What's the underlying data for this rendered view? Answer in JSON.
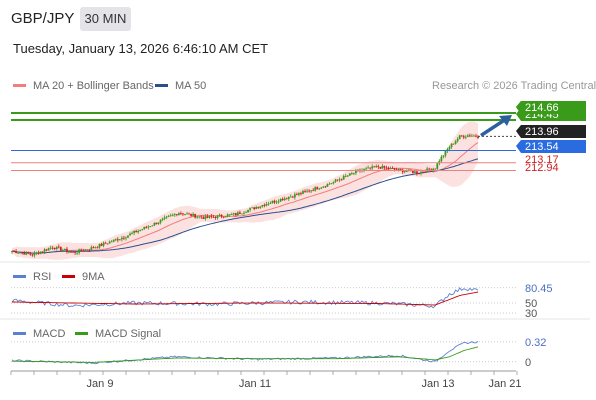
{
  "header": {
    "symbol": "GBP/JPY",
    "timeframe": "30 MIN",
    "timestamp": "Tuesday, January 13, 2026 6:46:10 AM CET"
  },
  "legend": {
    "main": [
      {
        "label": "MA 20 + Bollinger Bands",
        "color": "#f47c7c"
      },
      {
        "label": "MA 50",
        "color": "#2a4f8f"
      }
    ],
    "rsi": [
      {
        "label": "RSI",
        "color": "#5b7fd1"
      },
      {
        "label": "9MA",
        "color": "#cc0000"
      }
    ],
    "macd": [
      {
        "label": "MACD",
        "color": "#5b7fd1"
      },
      {
        "label": "MACD Signal",
        "color": "#3a9a1a"
      }
    ]
  },
  "credit": "Research © 2026 Trading Central",
  "colors": {
    "resistance": "#3a9a1a",
    "pivot": "#2a6be0",
    "support": "#f08080",
    "support_text": "#cc2222",
    "current": "#222222",
    "up_candle": "#3a9a1a",
    "down_candle": "#cc2222",
    "bollinger_fill": "#fbd9d9",
    "arrow": "#2d5e9e"
  },
  "chart_data": {
    "type": "candlestick",
    "x_ticks": [
      "Jan 9",
      "Jan 11",
      "Jan 13",
      "Jan 21"
    ],
    "y_range": [
      210.2,
      215.2
    ],
    "levels": [
      {
        "value": 214.66,
        "label": "214.66",
        "kind": "resistance"
      },
      {
        "value": 214.45,
        "label": "214.45",
        "kind": "resistance"
      },
      {
        "value": 213.96,
        "label": "213.96",
        "kind": "current"
      },
      {
        "value": 213.54,
        "label": "213.54",
        "kind": "pivot"
      },
      {
        "value": 213.17,
        "label": "213.17",
        "kind": "support"
      },
      {
        "value": 212.94,
        "label": "212.94",
        "kind": "support"
      }
    ],
    "forecast": {
      "from": 213.96,
      "to": 214.66,
      "direction": "up"
    },
    "price_key_points": [
      [
        0,
        210.53
      ],
      [
        10,
        210.42
      ],
      [
        20,
        210.65
      ],
      [
        30,
        210.48
      ],
      [
        40,
        210.63
      ],
      [
        55,
        210.95
      ],
      [
        70,
        211.35
      ],
      [
        82,
        211.68
      ],
      [
        95,
        211.52
      ],
      [
        110,
        211.63
      ],
      [
        125,
        211.95
      ],
      [
        140,
        212.22
      ],
      [
        155,
        212.52
      ],
      [
        170,
        212.92
      ],
      [
        180,
        213.05
      ],
      [
        190,
        212.95
      ],
      [
        200,
        212.88
      ],
      [
        208,
        213.02
      ],
      [
        210,
        213.25
      ],
      [
        215,
        213.65
      ],
      [
        220,
        213.95
      ],
      [
        225,
        214.0
      ],
      [
        229,
        213.96
      ]
    ],
    "rsi": {
      "levels": [
        80.45,
        50,
        30
      ],
      "key_points": [
        [
          0,
          55
        ],
        [
          30,
          45
        ],
        [
          60,
          50
        ],
        [
          100,
          48
        ],
        [
          140,
          52
        ],
        [
          180,
          50
        ],
        [
          208,
          44
        ],
        [
          215,
          68
        ],
        [
          222,
          80
        ],
        [
          229,
          75
        ]
      ],
      "ma_key_points": [
        [
          0,
          52
        ],
        [
          60,
          48
        ],
        [
          120,
          50
        ],
        [
          180,
          49
        ],
        [
          208,
          46
        ],
        [
          220,
          65
        ],
        [
          229,
          72
        ]
      ]
    },
    "macd": {
      "levels": [
        0.32,
        0
      ],
      "key_points": [
        [
          0,
          0.02
        ],
        [
          40,
          -0.02
        ],
        [
          80,
          0.08
        ],
        [
          120,
          0.04
        ],
        [
          160,
          0.06
        ],
        [
          190,
          0.1
        ],
        [
          208,
          0.0
        ],
        [
          215,
          0.18
        ],
        [
          222,
          0.3
        ],
        [
          229,
          0.32
        ]
      ],
      "signal_key_points": [
        [
          0,
          0.01
        ],
        [
          40,
          -0.01
        ],
        [
          80,
          0.06
        ],
        [
          120,
          0.05
        ],
        [
          160,
          0.05
        ],
        [
          190,
          0.08
        ],
        [
          208,
          0.03
        ],
        [
          215,
          0.08
        ],
        [
          222,
          0.18
        ],
        [
          229,
          0.24
        ]
      ]
    }
  }
}
